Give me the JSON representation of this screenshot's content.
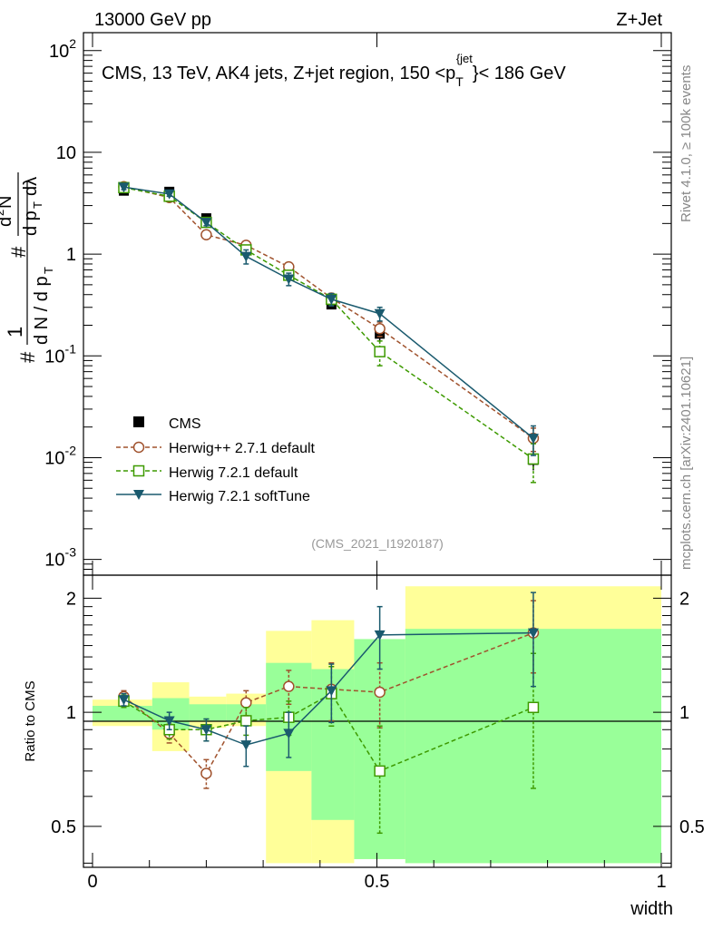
{
  "header": {
    "left": "13000 GeV pp",
    "right": "Z+Jet"
  },
  "side_labels": {
    "rivet": "Rivet 4.1.0, ≥ 100k events",
    "mcplots": "mcplots.cern.ch [arXiv:2401.10621]"
  },
  "colors": {
    "data": "#000000",
    "herwigpp": "#a0522d",
    "herwig721": "#3d9a00",
    "softtune": "#1a5a6e",
    "band_yellow": "#ffff99",
    "band_green": "#99ff99"
  },
  "chart_data": [
    {
      "type": "line",
      "scale": "log",
      "title": "CMS, 13 TeV, AK4 jets, Z+jet region, 150 <p_T^{jet}< 186 GeV",
      "analysis_tag": "(CMS_2021_I1920187)",
      "ylabel": "1/dN/dp_T  d²N/(dp_T dλ)",
      "ylim": [
        0.0007,
        150
      ],
      "yticks": [
        {
          "v": 0.001,
          "base": "10",
          "exp": "-3"
        },
        {
          "v": 0.01,
          "base": "10",
          "exp": "-2"
        },
        {
          "v": 0.1,
          "base": "10",
          "exp": "-1"
        },
        {
          "v": 1,
          "base": "1",
          "exp": ""
        },
        {
          "v": 10,
          "base": "10",
          "exp": ""
        },
        {
          "v": 100,
          "base": "10",
          "exp": "2"
        }
      ],
      "x": [
        0.055,
        0.135,
        0.2,
        0.27,
        0.345,
        0.42,
        0.505,
        0.775
      ],
      "data": {
        "name": "CMS",
        "values": [
          4.2,
          4.1,
          2.25,
          1.15,
          0.64,
          0.32,
          0.165,
          0.0095
        ],
        "errors": [
          0.25,
          0.25,
          0.15,
          0.1,
          0.06,
          0.03,
          0.03,
          0.002
        ]
      },
      "series": [
        {
          "name": "Herwig++ 2.7.1 default",
          "key": "herwigpp",
          "marker": "circle",
          "dash": true,
          "values": [
            4.6,
            3.6,
            1.55,
            1.22,
            0.75,
            0.37,
            0.185,
            0.0155
          ],
          "errors": [
            0.25,
            0.2,
            0.12,
            0.1,
            0.06,
            0.04,
            0.03,
            0.004
          ]
        },
        {
          "name": "Herwig 7.2.1 default",
          "key": "herwig721",
          "marker": "square",
          "dash": true,
          "values": [
            4.5,
            3.7,
            2.05,
            1.1,
            0.62,
            0.36,
            0.11,
            0.0097
          ],
          "errors": [
            0.25,
            0.2,
            0.15,
            0.1,
            0.06,
            0.04,
            0.03,
            0.004
          ]
        },
        {
          "name": "Herwig 7.2.1 softTune",
          "key": "softtune",
          "marker": "triangle",
          "dash": false,
          "values": [
            4.55,
            3.9,
            2.05,
            0.95,
            0.57,
            0.36,
            0.26,
            0.0155
          ],
          "errors": [
            0.25,
            0.2,
            0.15,
            0.15,
            0.08,
            0.05,
            0.04,
            0.005
          ]
        }
      ]
    },
    {
      "type": "line",
      "scale": "log",
      "ylabel": "Ratio to CMS",
      "xlabel": "width",
      "ylim": [
        0.39,
        2.3
      ],
      "xlim": [
        0,
        1
      ],
      "yticks": [
        {
          "v": 0.5,
          "label": "0.5"
        },
        {
          "v": 1,
          "label": "1"
        },
        {
          "v": 2,
          "label": "2"
        }
      ],
      "xticks": [
        {
          "v": 0,
          "label": "0"
        },
        {
          "v": 0.5,
          "label": "0.5"
        },
        {
          "v": 1,
          "label": "1"
        }
      ],
      "bins": [
        0,
        0.105,
        0.17,
        0.235,
        0.305,
        0.385,
        0.46,
        0.55,
        1.0
      ],
      "band_yellow": [
        [
          0.92,
          1.08
        ],
        [
          0.79,
          1.2
        ],
        [
          0.91,
          1.1
        ],
        [
          0.92,
          1.12
        ],
        [
          0.4,
          1.64
        ],
        [
          0.4,
          1.75
        ],
        [
          0.41,
          1.56
        ],
        [
          0.4,
          2.15
        ]
      ],
      "band_green": [
        [
          0.95,
          1.04
        ],
        [
          0.9,
          1.09
        ],
        [
          0.95,
          1.05
        ],
        [
          0.95,
          1.05
        ],
        [
          0.7,
          1.35
        ],
        [
          0.52,
          1.3
        ],
        [
          0.41,
          1.56
        ],
        [
          0.4,
          1.66
        ]
      ],
      "x": [
        0.055,
        0.135,
        0.2,
        0.27,
        0.345,
        0.42,
        0.505,
        0.775
      ],
      "series": [
        {
          "name": "Herwig++ 2.7.1 default",
          "key": "herwigpp",
          "marker": "circle",
          "dash": true,
          "values": [
            1.1,
            0.88,
            0.69,
            1.06,
            1.17,
            1.15,
            1.13,
            1.62
          ],
          "errors": [
            0.04,
            0.05,
            0.06,
            0.08,
            0.12,
            0.2,
            0.22,
            0.35
          ]
        },
        {
          "name": "Herwig 7.2.1 default",
          "key": "herwig721",
          "marker": "square",
          "dash": true,
          "values": [
            1.07,
            0.9,
            0.9,
            0.95,
            0.97,
            1.12,
            0.7,
            1.03
          ],
          "errors": [
            0.04,
            0.05,
            0.06,
            0.08,
            0.1,
            0.2,
            0.22,
            0.4
          ]
        },
        {
          "name": "Herwig 7.2.1 softTune",
          "key": "softtune",
          "marker": "triangle",
          "dash": false,
          "values": [
            1.08,
            0.95,
            0.9,
            0.82,
            0.88,
            1.14,
            1.6,
            1.62
          ],
          "errors": [
            0.04,
            0.05,
            0.06,
            0.1,
            0.12,
            0.2,
            0.3,
            0.45
          ]
        }
      ]
    }
  ]
}
